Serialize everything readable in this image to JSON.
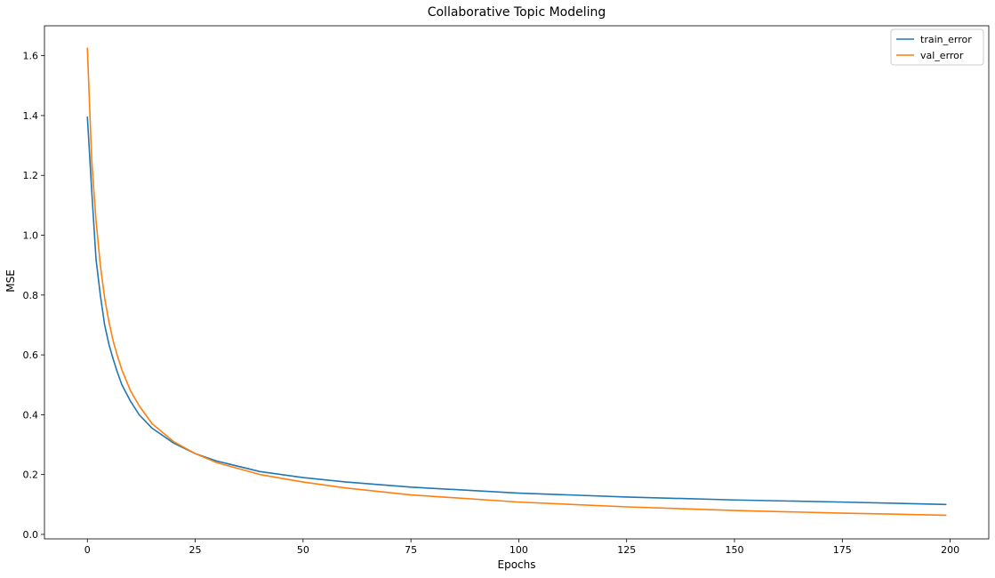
{
  "chart_data": {
    "type": "line",
    "title": "Collaborative Topic Modeling",
    "xlabel": "Epochs",
    "ylabel": "MSE",
    "xlim": [
      -9.95,
      208.95
    ],
    "ylim": [
      -0.015,
      1.7
    ],
    "xticks": [
      0,
      25,
      50,
      75,
      100,
      125,
      150,
      175,
      200
    ],
    "xtick_labels": [
      "0",
      "25",
      "50",
      "75",
      "100",
      "125",
      "150",
      "175",
      "200"
    ],
    "yticks": [
      0.0,
      0.2,
      0.4,
      0.6,
      0.8,
      1.0,
      1.2,
      1.4,
      1.6
    ],
    "ytick_labels": [
      "0.0",
      "0.2",
      "0.4",
      "0.6",
      "0.8",
      "1.0",
      "1.2",
      "1.4",
      "1.6"
    ],
    "grid": false,
    "legend_position": "top-right",
    "series": [
      {
        "name": "train_error",
        "color": "#1f77b4",
        "x": [
          0,
          1,
          2,
          3,
          4,
          5,
          6,
          7,
          8,
          10,
          12,
          15,
          20,
          25,
          30,
          40,
          50,
          60,
          75,
          100,
          125,
          150,
          175,
          199
        ],
        "y": [
          1.395,
          1.15,
          0.92,
          0.8,
          0.7,
          0.635,
          0.585,
          0.54,
          0.5,
          0.445,
          0.4,
          0.355,
          0.305,
          0.27,
          0.245,
          0.21,
          0.19,
          0.175,
          0.158,
          0.138,
          0.125,
          0.115,
          0.108,
          0.1
        ]
      },
      {
        "name": "val_error",
        "color": "#ff7f0e",
        "x": [
          0,
          1,
          2,
          3,
          4,
          5,
          6,
          7,
          8,
          10,
          12,
          15,
          20,
          25,
          30,
          40,
          50,
          60,
          75,
          100,
          125,
          150,
          175,
          199
        ],
        "y": [
          1.625,
          1.25,
          1.05,
          0.9,
          0.79,
          0.71,
          0.645,
          0.595,
          0.55,
          0.48,
          0.43,
          0.37,
          0.31,
          0.27,
          0.24,
          0.2,
          0.175,
          0.155,
          0.132,
          0.108,
          0.092,
          0.08,
          0.071,
          0.064
        ]
      }
    ]
  }
}
